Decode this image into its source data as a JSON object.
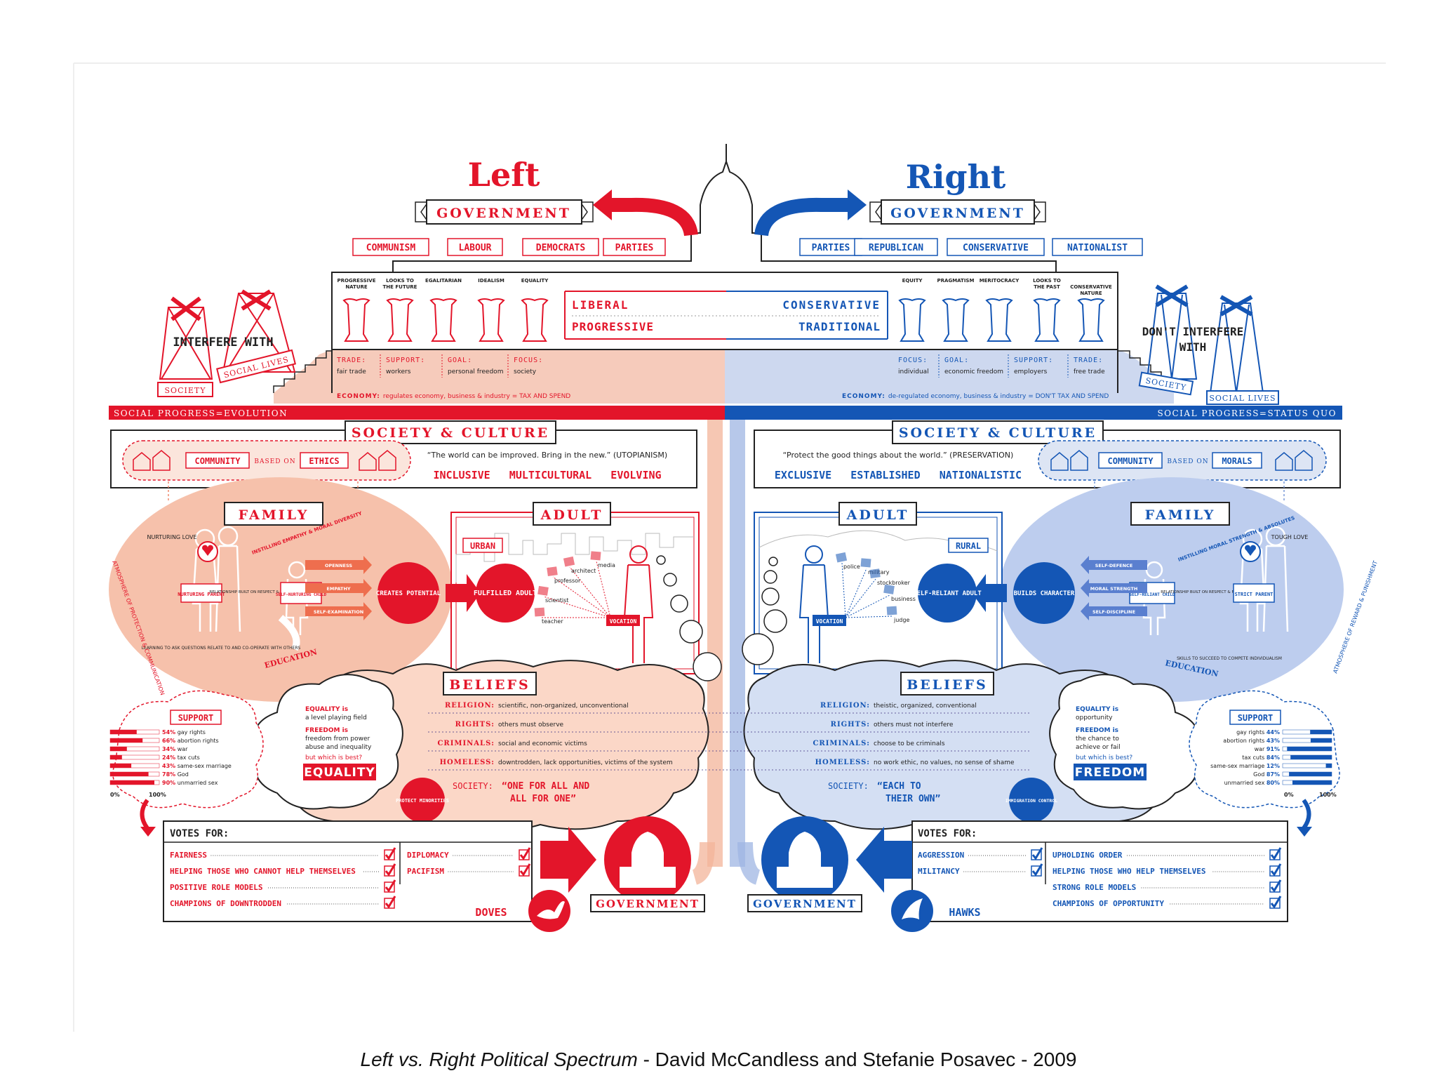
{
  "left": {
    "title": "Left",
    "government": "GOVERNMENT",
    "parties": [
      "COMMUNISM",
      "LABOUR",
      "DEMOCRATS",
      "PARTIES"
    ],
    "pillars": [
      "PROGRESSIVE NATURE",
      "LOOKS TO THE FUTURE",
      "EGALITARIAN",
      "IDEALISM",
      "EQUALITY"
    ],
    "liberal": "LIBERAL",
    "progressive": "PROGRESSIVE",
    "interfere": "INTERFERE WITH",
    "society_tag": "SOCIETY",
    "social_lives_tag": "SOCIAL LIVES",
    "strip": [
      {
        "label": "TRADE:",
        "value": "fair trade"
      },
      {
        "label": "SUPPORT:",
        "value": "workers"
      },
      {
        "label": "GOAL:",
        "value": "personal freedom"
      },
      {
        "label": "FOCUS:",
        "value": "society"
      }
    ],
    "economy_label": "ECONOMY:",
    "economy_text": "regulates economy, business & industry = TAX AND SPEND",
    "social_progress": "SOCIAL PROGRESS=EVOLUTION",
    "society_culture": "SOCIETY & CULTURE",
    "community": "COMMUNITY",
    "based_on": "BASED ON",
    "ethics": "ETHICS",
    "quote": "“The world can be improved. Bring in the new.” (UTOPIANISM)",
    "traits": "INCLUSIVE   MULTICULTURAL   EVOLVING",
    "family": "FAMILY",
    "nurturing_love": "NURTURING LOVE",
    "instilling": "INSTILLING EMPATHY & MORAL DIVERSITY",
    "parent": "NURTURING PARENT",
    "relationship": "RELATIONSHIP BUILT ON RESPECT & TRUST",
    "child": "SELF-NURTURING CHILD",
    "arrows": [
      "OPENNESS",
      "EMPATHY",
      "SELF-EXAMINATION"
    ],
    "creates": "CREATES POTENTIAL",
    "learning": "LEARNING TO ASK QUESTIONS RELATE TO AND CO-OPERATE WITH OTHERS",
    "education": "EDUCATION",
    "atmosphere": "ATMOSPHERE OF PROTECTION & COMMUNICATION",
    "adult": "ADULT",
    "urban": "URBAN",
    "fulfilled": "FULFILLED ADULT",
    "jobs": [
      "architect",
      "media",
      "professor",
      "scientist",
      "teacher"
    ],
    "vocation": "VOCATION",
    "beliefs": "BELIEFS",
    "belief_rows": [
      {
        "label": "RELIGION:",
        "value": "scientific, non-organized, unconventional"
      },
      {
        "label": "RIGHTS:",
        "value": "others must observe"
      },
      {
        "label": "CRIMINALS:",
        "value": "social and economic victims"
      },
      {
        "label": "HOMELESS:",
        "value": "downtrodden, lack opportunities, victims of the system"
      }
    ],
    "society_belief_label": "SOCIETY:",
    "society_belief_value": "“ONE FOR ALL AND ALL FOR ONE”",
    "protect": "PROTECT MINORITIES",
    "support": "SUPPORT",
    "support_rows": [
      {
        "pct": "54%",
        "label": "gay rights",
        "value": 54
      },
      {
        "pct": "66%",
        "label": "abortion rights",
        "value": 66
      },
      {
        "pct": "34%",
        "label": "war",
        "value": 34
      },
      {
        "pct": "24%",
        "label": "tax cuts",
        "value": 24
      },
      {
        "pct": "43%",
        "label": "same-sex marriage",
        "value": 43
      },
      {
        "pct": "78%",
        "label": "God",
        "value": 78
      },
      {
        "pct": "90%",
        "label": "unmarried sex",
        "value": 90
      }
    ],
    "axis_min": "0%",
    "axis_max": "100%",
    "equality_is": "EQUALITY is",
    "equality_def": "a level playing field",
    "freedom_is": "FREEDOM is",
    "freedom_def": "freedom from power abuse and inequality",
    "which_best": "but which is best?",
    "winner": "EQUALITY",
    "votes_for": "VOTES FOR:",
    "votes": [
      "FAIRNESS",
      "HELPING THOSE WHO CANNOT HELP THEMSELVES",
      "POSITIVE ROLE MODELS",
      "CHAMPIONS OF DOWNTRODDEN"
    ],
    "votes2": [
      "DIPLOMACY",
      "PACIFISM"
    ],
    "bird": "DOVES",
    "gov_banner": "GOVERNMENT"
  },
  "right": {
    "title": "Right",
    "government": "GOVERNMENT",
    "parties": [
      "PARTIES",
      "REPUBLICAN",
      "CONSERVATIVE",
      "NATIONALIST"
    ],
    "pillars": [
      "EQUITY",
      "PRAGMATISM",
      "MERITOCRACY",
      "LOOKS TO THE PAST",
      "CONSERVATIVE NATURE"
    ],
    "conservative": "CONSERVATIVE",
    "traditional": "TRADITIONAL",
    "interfere": "DON'T INTERFERE WITH",
    "society_tag": "SOCIETY",
    "social_lives_tag": "SOCIAL LIVES",
    "strip": [
      {
        "label": "FOCUS:",
        "value": "individual"
      },
      {
        "label": "GOAL:",
        "value": "economic freedom"
      },
      {
        "label": "SUPPORT:",
        "value": "employers"
      },
      {
        "label": "TRADE:",
        "value": "free trade"
      }
    ],
    "economy_label": "ECONOMY:",
    "economy_text": "de-regulated economy, business & industry = DON'T TAX AND SPEND",
    "social_progress": "SOCIAL PROGRESS=STATUS QUO",
    "society_culture": "SOCIETY & CULTURE",
    "community": "COMMUNITY",
    "based_on": "BASED ON",
    "morals": "MORALS",
    "quote": "“Protect the good things about the world.” (PRESERVATION)",
    "traits": "EXCLUSIVE   ESTABLISHED   NATIONALISTIC",
    "family": "FAMILY",
    "tough_love": "TOUGH LOVE",
    "instilling": "INSTILLING MORAL STRENGTH & ABSOLUTES",
    "parent": "STRICT PARENT",
    "relationship": "RELATIONSHIP BUILT ON RESPECT & FEAR",
    "child": "SELF-RELIANT CHILD",
    "arrows": [
      "SELF-DEFENCE",
      "MORAL STRENGTH",
      "SELF-DISCIPLINE"
    ],
    "builds": "BUILDS CHARACTER",
    "skills": "SKILLS TO SUCCEED TO COMPETE INDIVIDUALISM",
    "education": "EDUCATION",
    "atmosphere": "ATMOSPHERE OF REWARD & PUNISHMENT",
    "adult": "ADULT",
    "rural": "RURAL",
    "selfreliant": "SELF-RELIANT ADULT",
    "jobs": [
      "police",
      "military",
      "stockbroker",
      "business",
      "judge"
    ],
    "vocation": "VOCATION",
    "beliefs": "BELIEFS",
    "belief_rows": [
      {
        "label": "RELIGION:",
        "value": "theistic, organized, conventional"
      },
      {
        "label": "RIGHTS:",
        "value": "others must not interfere"
      },
      {
        "label": "CRIMINALS:",
        "value": "choose to be criminals"
      },
      {
        "label": "HOMELESS:",
        "value": "no work ethic, no values, no sense of shame"
      }
    ],
    "society_belief_label": "SOCIETY:",
    "society_belief_value": "“EACH TO THEIR OWN”",
    "immigration": "IMMIGRATION CONTROL",
    "support": "SUPPORT",
    "support_rows": [
      {
        "pct": "44%",
        "label": "gay rights",
        "value": 44
      },
      {
        "pct": "43%",
        "label": "abortion rights",
        "value": 43
      },
      {
        "pct": "91%",
        "label": "war",
        "value": 91
      },
      {
        "pct": "84%",
        "label": "tax cuts",
        "value": 84
      },
      {
        "pct": "12%",
        "label": "same-sex marriage",
        "value": 12
      },
      {
        "pct": "87%",
        "label": "God",
        "value": 87
      },
      {
        "pct": "80%",
        "label": "unmarried sex",
        "value": 80
      }
    ],
    "axis_min": "0%",
    "axis_max": "100%",
    "equality_is": "EQUALITY is",
    "equality_def": "opportunity",
    "freedom_is": "FREEDOM is",
    "freedom_def": "the chance to achieve or fail",
    "which_best": "but which is best?",
    "winner": "FREEDOM",
    "votes_for": "VOTES FOR:",
    "votes": [
      "AGGRESSION",
      "MILITANCY"
    ],
    "votes2": [
      "UPHOLDING ORDER",
      "HELPING THOSE WHO HELP THEMSELVES",
      "STRONG ROLE MODELS",
      "CHAMPIONS OF OPPORTUNITY"
    ],
    "bird": "HAWKS",
    "gov_banner": "GOVERNMENT"
  },
  "colors": {
    "left": "#e3152a",
    "right": "#1456b5",
    "left_light": "#f6cbbb",
    "right_light": "#cdd8ef"
  },
  "caption": {
    "title": "Left vs. Right Political Spectrum",
    "credit": " - David McCandless and Stefanie Posavec - 2009"
  }
}
